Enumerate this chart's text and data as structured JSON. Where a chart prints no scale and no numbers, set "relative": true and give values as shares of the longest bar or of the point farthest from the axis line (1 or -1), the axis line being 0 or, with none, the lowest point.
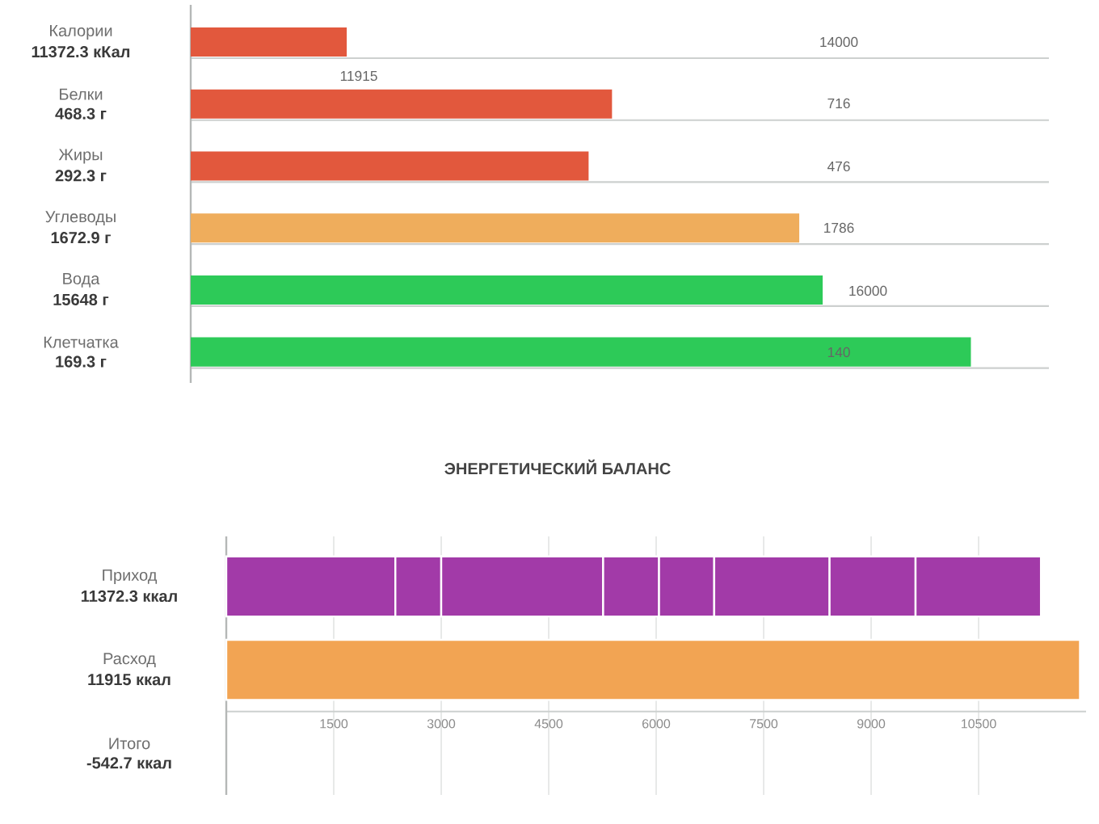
{
  "chart_data": [
    {
      "type": "bar",
      "orientation": "horizontal",
      "relative": true,
      "categories": [
        "Калории",
        "Белки",
        "Жиры",
        "Углеводы",
        "Вода",
        "Клетчатка"
      ],
      "values": [
        0.2,
        0.54,
        0.51,
        0.78,
        0.81,
        1
      ],
      "colors": [
        "#e2583d",
        "#e2583d",
        "#e2583d",
        "#efad5c",
        "#2dca58",
        "#2dca58"
      ],
      "annotations": [
        "11372.3 кКал",
        "14000",
        "11915",
        "468.3 г",
        "716",
        "292.3 г",
        "476",
        "1672.9 г",
        "1786",
        "15648 г",
        "16000",
        "169.3 г",
        "140"
      ],
      "grid": "y"
    },
    {
      "type": "bar",
      "orientation": "horizontal",
      "stacked": true,
      "title": "ЭНЕРГЕТИЧЕСКИЙ БАЛАНС",
      "categories": [
        "Приход",
        "Расход",
        "Итого"
      ],
      "annotations": [
        "11372.3 ккал",
        "11915 ккал",
        "-542.7 ккал"
      ],
      "series": [
        {
          "color": "#a23aa8",
          "values": [
            2360,
            null,
            null
          ]
        },
        {
          "color": "#a23aa8",
          "values": [
            640,
            null,
            null
          ]
        },
        {
          "color": "#a23aa8",
          "values": [
            2260,
            null,
            null
          ]
        },
        {
          "color": "#a23aa8",
          "values": [
            780,
            null,
            null
          ]
        },
        {
          "color": "#a23aa8",
          "values": [
            770,
            null,
            null
          ]
        },
        {
          "color": "#a23aa8",
          "values": [
            1610,
            null,
            null
          ]
        },
        {
          "color": "#a23aa8",
          "values": [
            1200,
            null,
            null
          ]
        },
        {
          "color": "#a23aa8",
          "values": [
            1750,
            null,
            null
          ]
        },
        {
          "color": "#f2a453",
          "values": [
            null,
            11915,
            null
          ]
        }
      ],
      "xlim": [
        0,
        12000
      ],
      "xticks": [
        1500,
        3000,
        4500,
        6000,
        7500,
        9000,
        10500
      ],
      "grid": "x"
    }
  ]
}
